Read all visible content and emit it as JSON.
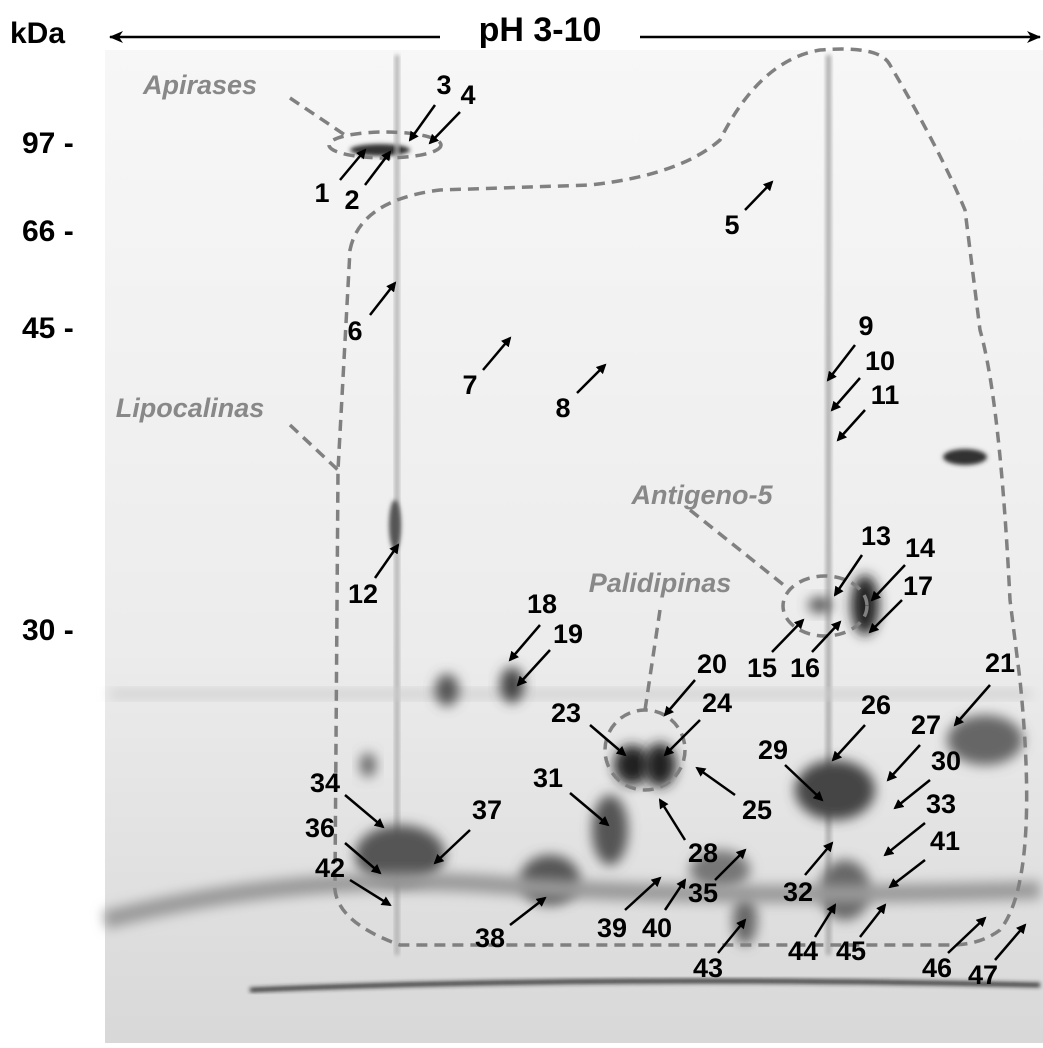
{
  "header": {
    "mw_unit": "kDa",
    "ph_range": "pH 3-10"
  },
  "mw_markers": [
    "97 -",
    "66 -",
    "45 -",
    "30 -"
  ],
  "regions": [
    "Apirases",
    "Lipocalinas",
    "Antigeno-5",
    "Palidipinas"
  ],
  "spots": [
    "1",
    "2",
    "3",
    "4",
    "5",
    "6",
    "7",
    "8",
    "9",
    "10",
    "11",
    "12",
    "13",
    "14",
    "15",
    "16",
    "17",
    "18",
    "19",
    "20",
    "21",
    "23",
    "24",
    "25",
    "26",
    "27",
    "28",
    "29",
    "30",
    "31",
    "32",
    "33",
    "34",
    "35",
    "36",
    "37",
    "38",
    "39",
    "40",
    "41",
    "42",
    "43",
    "44",
    "45",
    "46",
    "47"
  ]
}
